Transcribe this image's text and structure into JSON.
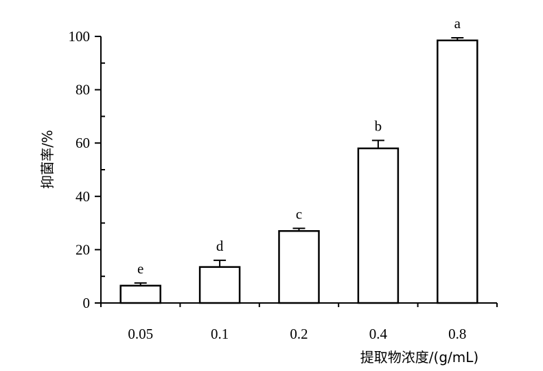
{
  "chart_data": {
    "type": "bar",
    "categories": [
      "0.05",
      "0.1",
      "0.2",
      "0.4",
      "0.8"
    ],
    "values": [
      6.5,
      13.5,
      27.0,
      58.0,
      98.5
    ],
    "errors": [
      1.0,
      2.5,
      1.0,
      3.0,
      1.0
    ],
    "significance_labels": [
      "e",
      "d",
      "c",
      "b",
      "a"
    ],
    "xlabel": "提取物浓度/(g/mL)",
    "ylabel": "抑菌率/%",
    "ylim": [
      0,
      100
    ],
    "yticks": [
      0,
      20,
      40,
      60,
      80,
      100
    ],
    "ytick_labels": [
      "0",
      "20",
      "40",
      "60",
      "80",
      "100"
    ],
    "bar_fill": "#ffffff",
    "bar_stroke": "#000000",
    "grid": false
  }
}
